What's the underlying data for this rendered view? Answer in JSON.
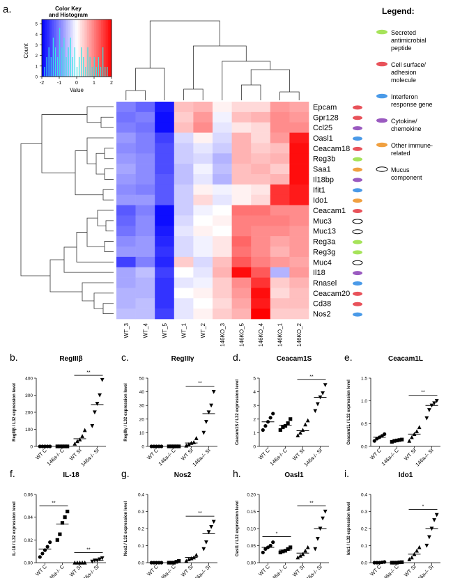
{
  "panel_a": {
    "letter": "a.",
    "color_key": {
      "title_line1": "Color Key",
      "title_line2": "and Histogram",
      "xlabel": "Value",
      "ylabel": "Count",
      "xticks": [
        "-2",
        "-1",
        "0",
        "1",
        "2"
      ],
      "yticks": [
        "0",
        "1",
        "2",
        "3",
        "4",
        "5"
      ]
    },
    "legend": {
      "title": "Legend:",
      "items": [
        {
          "label_lines": [
            "Secreted",
            "antimicrobial",
            "peptide"
          ],
          "color": "#a6e35a",
          "outline": false
        },
        {
          "label_lines": [
            "Cell surface/",
            "adhesion",
            "molecule"
          ],
          "color": "#e8525a",
          "outline": false
        },
        {
          "label_lines": [
            "Interferon",
            "response gene"
          ],
          "color": "#4a9ae8",
          "outline": false
        },
        {
          "label_lines": [
            "Cytokine/",
            "chemokine"
          ],
          "color": "#9a5ac0",
          "outline": false
        },
        {
          "label_lines": [
            "Other immune-",
            "related"
          ],
          "color": "#f0a040",
          "outline": false
        },
        {
          "label_lines": [
            "Mucus",
            "component"
          ],
          "color": "#ffffff",
          "outline": true
        }
      ]
    },
    "heatmap": {
      "type": "heatmap",
      "columns": [
        "WT_3",
        "WT_4",
        "WT_5",
        "WT_1",
        "WT_2",
        "146KO_3",
        "146KO_5",
        "146KO_4",
        "146KO_1",
        "146KO_2"
      ],
      "rows": [
        {
          "gene": "Epcam",
          "marker": "#e8525a",
          "values": [
            -1.0,
            -1.2,
            -1.8,
            0.5,
            0.6,
            0.1,
            0.3,
            0.3,
            0.8,
            0.7
          ]
        },
        {
          "gene": "Gpr128",
          "marker": "#e8525a",
          "values": [
            -1.1,
            -1.0,
            -1.9,
            0.4,
            0.8,
            -0.1,
            0.5,
            0.6,
            0.9,
            0.8
          ]
        },
        {
          "gene": "Ccl25",
          "marker": "#9a5ac0",
          "values": [
            -1.0,
            -1.1,
            -1.9,
            0.5,
            0.9,
            -0.2,
            0.2,
            0.3,
            0.9,
            0.9
          ]
        },
        {
          "gene": "Oasl1",
          "marker": "#4a9ae8",
          "values": [
            -0.8,
            -1.0,
            -1.5,
            -0.3,
            0.1,
            -0.3,
            0.6,
            0.3,
            0.8,
            1.8
          ]
        },
        {
          "gene": "Ceacam18",
          "marker": "#e8525a",
          "values": [
            -0.9,
            -1.0,
            -1.4,
            -0.4,
            -0.2,
            -0.4,
            0.6,
            0.4,
            0.5,
            1.9
          ]
        },
        {
          "gene": "Reg3b",
          "marker": "#a6e35a",
          "values": [
            -0.8,
            -0.9,
            -1.4,
            -0.4,
            -0.3,
            -0.6,
            0.6,
            0.5,
            0.6,
            1.9
          ]
        },
        {
          "gene": "Saa1",
          "marker": "#f0a040",
          "values": [
            -0.7,
            -0.9,
            -1.4,
            -0.5,
            -0.1,
            -0.5,
            0.5,
            0.6,
            0.4,
            1.9
          ]
        },
        {
          "gene": "Il18bp",
          "marker": "#9a5ac0",
          "values": [
            -0.8,
            -0.9,
            -1.3,
            -0.5,
            -0.2,
            -0.6,
            0.5,
            0.5,
            0.6,
            1.9
          ]
        },
        {
          "gene": "Ifit1",
          "marker": "#4a9ae8",
          "values": [
            -0.9,
            -1.0,
            -1.3,
            -0.4,
            0.1,
            -0.1,
            0.1,
            0.2,
            1.6,
            1.8
          ]
        },
        {
          "gene": "Ido1",
          "marker": "#f0a040",
          "values": [
            -0.8,
            -0.8,
            -1.3,
            -0.4,
            0.3,
            -0.2,
            0.1,
            0.3,
            1.6,
            1.8
          ]
        },
        {
          "gene": "Ceacam1",
          "marker": "#e8525a",
          "values": [
            -1.3,
            -1.0,
            -1.9,
            -0.4,
            -0.1,
            0.0,
            1.1,
            1.1,
            0.9,
            0.9
          ]
        },
        {
          "gene": "Muc3",
          "marker": "#ffffff",
          "values": [
            -1.2,
            -0.9,
            -1.9,
            -0.3,
            0.0,
            0.1,
            1.0,
            1.0,
            1.0,
            0.9
          ]
        },
        {
          "gene": "Muc13",
          "marker": "#ffffff",
          "values": [
            -1.1,
            -0.9,
            -1.8,
            -0.2,
            0.1,
            0.0,
            1.0,
            0.9,
            0.9,
            0.8
          ]
        },
        {
          "gene": "Reg3a",
          "marker": "#a6e35a",
          "values": [
            -0.9,
            -0.8,
            -1.7,
            -0.3,
            -0.1,
            0.2,
            1.2,
            0.9,
            0.7,
            0.8
          ]
        },
        {
          "gene": "Reg3g",
          "marker": "#a6e35a",
          "values": [
            -0.8,
            -0.8,
            -1.6,
            -0.3,
            -0.1,
            0.2,
            1.1,
            0.9,
            0.6,
            0.8
          ]
        },
        {
          "gene": "Muc4",
          "marker": "#ffffff",
          "values": [
            -1.5,
            -1.0,
            -1.7,
            0.4,
            -0.3,
            0.5,
            1.3,
            1.0,
            0.8,
            0.7
          ]
        },
        {
          "gene": "Il18",
          "marker": "#9a5ac0",
          "values": [
            -0.7,
            -0.5,
            -1.5,
            0.0,
            -0.2,
            0.6,
            1.9,
            1.3,
            -0.6,
            0.8
          ]
        },
        {
          "gene": "Rnasel",
          "marker": "#4a9ae8",
          "values": [
            -0.7,
            -0.6,
            -1.6,
            -0.2,
            -0.1,
            0.4,
            0.9,
            1.6,
            0.4,
            0.6
          ]
        },
        {
          "gene": "Ceacam20",
          "marker": "#e8525a",
          "values": [
            -0.6,
            -0.6,
            -1.6,
            0.0,
            0.1,
            0.4,
            0.8,
            1.9,
            0.3,
            0.5
          ]
        },
        {
          "gene": "Cd38",
          "marker": "#e8525a",
          "values": [
            -0.6,
            -0.5,
            -1.6,
            -0.2,
            0.0,
            0.3,
            0.7,
            1.8,
            0.5,
            0.5
          ]
        },
        {
          "gene": "Nos2",
          "marker": "#4a9ae8",
          "values": [
            -0.5,
            -0.5,
            -1.5,
            -0.2,
            0.1,
            0.4,
            0.6,
            2.0,
            0.4,
            0.4
          ]
        }
      ],
      "range": [
        -2,
        2
      ]
    }
  },
  "chart_data": [
    {
      "type": "scatter",
      "letter": "b.",
      "title": "RegIIIβ",
      "ylabel": "RegIIIβ / L32 expression level",
      "categories": [
        "WT C",
        "146a-/- C",
        "WT SI",
        "146a-/- SI"
      ],
      "ylim": [
        0,
        400
      ],
      "yticks": [
        "0",
        "100",
        "200",
        "300",
        "400"
      ],
      "points": [
        [
          0,
          0,
          0,
          0,
          0
        ],
        [
          0,
          0,
          0,
          0,
          0
        ],
        [
          15,
          30,
          40,
          60,
          95
        ],
        [
          120,
          200,
          250,
          300,
          390
        ]
      ],
      "means": [
        0,
        0,
        45,
        245
      ],
      "significance": [
        {
          "from": 2,
          "to": 3,
          "label": "**"
        }
      ]
    },
    {
      "type": "scatter",
      "letter": "c.",
      "title": "RegIIIγ",
      "ylabel": "RegIIIγ / L32 expression level",
      "categories": [
        "WT C",
        "146a-/- C",
        "WT SI",
        "146a-/- SI"
      ],
      "ylim": [
        0,
        50
      ],
      "yticks": [
        "0",
        "10",
        "20",
        "30",
        "40",
        "50"
      ],
      "points": [
        [
          0,
          0,
          0,
          0,
          0
        ],
        [
          0,
          0,
          0,
          0,
          0
        ],
        [
          0.5,
          1.5,
          2.5,
          3,
          6
        ],
        [
          10,
          18,
          25,
          30,
          40
        ]
      ],
      "means": [
        0,
        0,
        2.5,
        24
      ],
      "significance": [
        {
          "from": 2,
          "to": 3,
          "label": "**"
        }
      ]
    },
    {
      "type": "scatter",
      "letter": "d.",
      "title": "Ceacam1S",
      "ylabel": "Ceacam1S / L32 expression level",
      "categories": [
        "WT C",
        "146a-/- C",
        "WT SI",
        "146a-/- SI"
      ],
      "ylim": [
        0,
        5
      ],
      "yticks": [
        "0",
        "1",
        "2",
        "3",
        "4",
        "5"
      ],
      "points": [
        [
          1.2,
          1.5,
          1.8,
          2.1,
          2.4
        ],
        [
          1.2,
          1.4,
          1.5,
          1.7,
          2.0
        ],
        [
          0.8,
          1.0,
          1.2,
          1.6,
          1.9
        ],
        [
          2.6,
          3.1,
          3.6,
          3.9,
          4.5
        ]
      ],
      "means": [
        1.8,
        1.55,
        1.15,
        3.6
      ],
      "significance": [
        {
          "from": 2,
          "to": 3,
          "label": "**"
        }
      ]
    },
    {
      "type": "scatter",
      "letter": "e.",
      "title": "Ceacam1L",
      "ylabel": "Ceacam1L / L32 expression level",
      "categories": [
        "WT C",
        "146a-/- C",
        "WT SI",
        "146a-/- SI"
      ],
      "ylim": [
        0,
        1.5
      ],
      "yticks": [
        "0.0",
        "0.5",
        "1.0",
        "1.5"
      ],
      "points": [
        [
          0.12,
          0.17,
          0.2,
          0.23,
          0.27
        ],
        [
          0.1,
          0.12,
          0.13,
          0.14,
          0.15
        ],
        [
          0.12,
          0.2,
          0.27,
          0.33,
          0.42
        ],
        [
          0.62,
          0.8,
          0.9,
          0.95,
          1.0
        ]
      ],
      "means": [
        0.2,
        0.13,
        0.27,
        0.9
      ],
      "significance": [
        {
          "from": 2,
          "to": 3,
          "label": "**"
        }
      ]
    },
    {
      "type": "scatter",
      "letter": "f.",
      "title": "IL-18",
      "ylabel": "IL-18 / L32 expression level",
      "categories": [
        "WT C",
        "146a-/- C",
        "WT SI",
        "146a-/- SI"
      ],
      "ylim": [
        0,
        0.06
      ],
      "yticks": [
        "0.00",
        "0.02",
        "0.04",
        "0.06"
      ],
      "points": [
        [
          0.005,
          0.008,
          0.011,
          0.014,
          0.018
        ],
        [
          0.02,
          0.025,
          0.035,
          0.04,
          0.045
        ],
        [
          0,
          0,
          0,
          0,
          0
        ],
        [
          0.001,
          0.002,
          0.002,
          0.003,
          0.004
        ]
      ],
      "means": [
        0.012,
        0.034,
        0,
        0.002
      ],
      "significance": [
        {
          "from": 0,
          "to": 1,
          "label": "**"
        },
        {
          "from": 2,
          "to": 3,
          "label": "**"
        }
      ]
    },
    {
      "type": "scatter",
      "letter": "g.",
      "title": "Nos2",
      "ylabel": "Nos2 / L32 expression level",
      "categories": [
        "WT C",
        "146a-/- C",
        "WT SI",
        "146a-/- SI"
      ],
      "ylim": [
        0,
        0.4
      ],
      "yticks": [
        "0.0",
        "0.1",
        "0.2",
        "0.3",
        "0.4"
      ],
      "points": [
        [
          0,
          0,
          0,
          0,
          0
        ],
        [
          0,
          0,
          0,
          0.005,
          0.01
        ],
        [
          0.01,
          0.02,
          0.025,
          0.03,
          0.045
        ],
        [
          0.08,
          0.12,
          0.18,
          0.21,
          0.24
        ]
      ],
      "means": [
        0,
        0.005,
        0.03,
        0.17
      ],
      "significance": [
        {
          "from": 2,
          "to": 3,
          "label": "**"
        }
      ]
    },
    {
      "type": "scatter",
      "letter": "h.",
      "title": "Oasl1",
      "ylabel": "Oasl1 / L32 expression level",
      "categories": [
        "WT C",
        "146a-/- C",
        "WT SI",
        "146a-/- SI"
      ],
      "ylim": [
        0,
        0.2
      ],
      "yticks": [
        "0.00",
        "0.05",
        "0.10",
        "0.15",
        "0.20"
      ],
      "points": [
        [
          0.03,
          0.04,
          0.045,
          0.05,
          0.06
        ],
        [
          0.03,
          0.033,
          0.035,
          0.04,
          0.045
        ],
        [
          0.015,
          0.02,
          0.025,
          0.035,
          0.045
        ],
        [
          0.04,
          0.07,
          0.1,
          0.13,
          0.15
        ]
      ],
      "means": [
        0.045,
        0.037,
        0.028,
        0.1
      ],
      "significance": [
        {
          "from": 0,
          "to": 1,
          "label": "*"
        },
        {
          "from": 2,
          "to": 3,
          "label": "**"
        }
      ]
    },
    {
      "type": "scatter",
      "letter": "i.",
      "title": "Ido1",
      "ylabel": "Ido1 / L32 expression level",
      "categories": [
        "WT C",
        "146a-/- C",
        "WT SI",
        "146a-/- SI"
      ],
      "ylim": [
        0,
        0.4
      ],
      "yticks": [
        "0.0",
        "0.1",
        "0.2",
        "0.3",
        "0.4"
      ],
      "points": [
        [
          0,
          0,
          0,
          0.002,
          0.004
        ],
        [
          0,
          0,
          0,
          0.002,
          0.003
        ],
        [
          0.02,
          0.03,
          0.05,
          0.07,
          0.09
        ],
        [
          0.1,
          0.15,
          0.2,
          0.25,
          0.28
        ]
      ],
      "means": [
        0,
        0,
        0.05,
        0.2
      ],
      "significance": [
        {
          "from": 2,
          "to": 3,
          "label": "*"
        }
      ]
    }
  ]
}
